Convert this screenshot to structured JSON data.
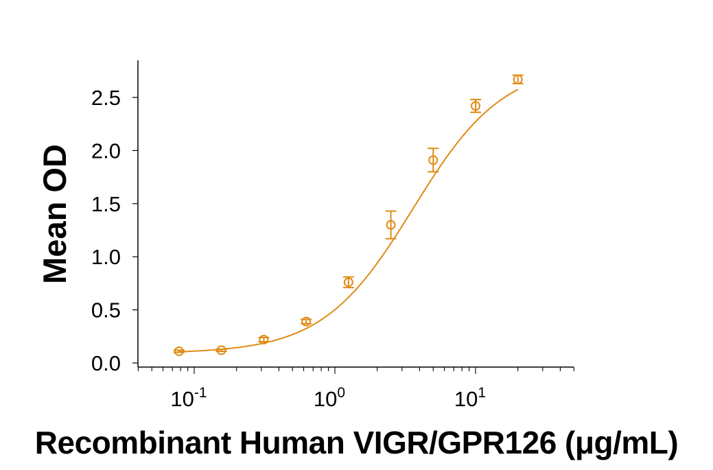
{
  "chart_data": {
    "type": "scatter",
    "title": "",
    "xlabel": "Recombinant Human VIGR/GPR126 (μg/mL)",
    "ylabel": "Mean OD",
    "xscale": "log",
    "xlim": [
      0.04,
      50
    ],
    "ylim": [
      0.0,
      2.8
    ],
    "x_tick_labels": [
      {
        "base": "10",
        "exp": "-1",
        "value": 0.1
      },
      {
        "base": "10",
        "exp": "0",
        "value": 1
      },
      {
        "base": "10",
        "exp": "1",
        "value": 10
      }
    ],
    "y_tick_labels": [
      "0.0",
      "0.5",
      "1.0",
      "1.5",
      "2.0",
      "2.5"
    ],
    "y_ticks": [
      0.0,
      0.5,
      1.0,
      1.5,
      2.0,
      2.5
    ],
    "grid": false,
    "legend": null,
    "series": [
      {
        "name": "Mean OD",
        "color": "#E08A14",
        "marker": "open-circle",
        "fit": "4PL",
        "x": [
          0.078,
          0.156,
          0.3125,
          0.625,
          1.25,
          2.5,
          5,
          10,
          20
        ],
        "values": [
          0.11,
          0.12,
          0.22,
          0.39,
          0.76,
          1.3,
          1.91,
          2.42,
          2.67
        ],
        "errors": [
          0.01,
          0.01,
          0.02,
          0.02,
          0.05,
          0.13,
          0.11,
          0.06,
          0.04
        ]
      }
    ]
  }
}
